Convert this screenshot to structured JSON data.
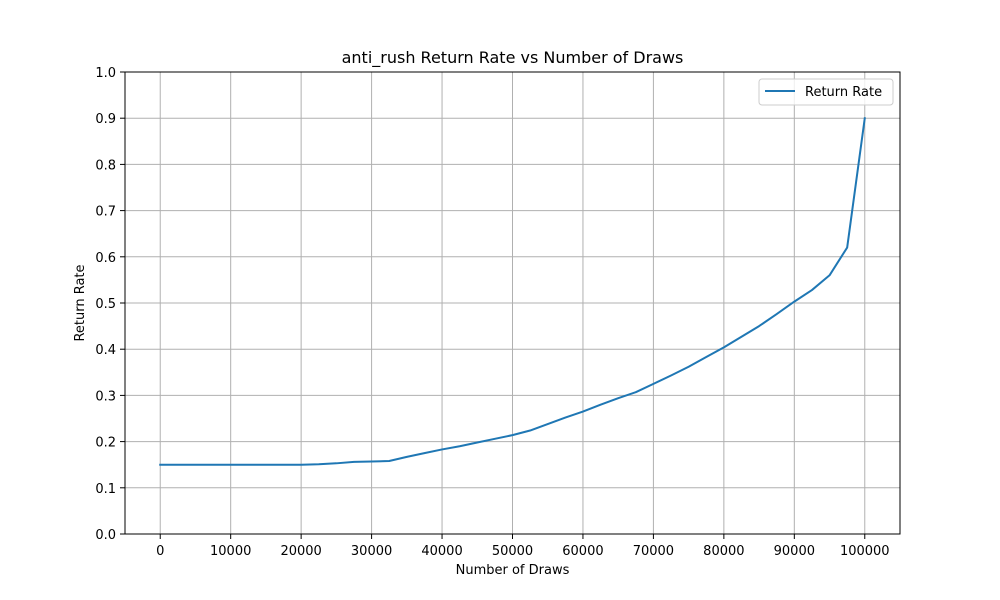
{
  "chart_data": {
    "type": "line",
    "title": "anti_rush Return Rate vs Number of Draws",
    "xlabel": "Number of Draws",
    "ylabel": "Return Rate",
    "xlim": [
      -5000,
      105000
    ],
    "ylim": [
      0.0,
      1.0
    ],
    "xticks": [
      0,
      10000,
      20000,
      30000,
      40000,
      50000,
      60000,
      70000,
      80000,
      90000,
      100000
    ],
    "xtick_labels": [
      "0",
      "10000",
      "20000",
      "30000",
      "40000",
      "50000",
      "60000",
      "70000",
      "80000",
      "90000",
      "100000"
    ],
    "yticks": [
      0.0,
      0.1,
      0.2,
      0.3,
      0.4,
      0.5,
      0.6,
      0.7,
      0.8,
      0.9,
      1.0
    ],
    "ytick_labels": [
      "0.0",
      "0.1",
      "0.2",
      "0.3",
      "0.4",
      "0.5",
      "0.6",
      "0.7",
      "0.8",
      "0.9",
      "1.0"
    ],
    "grid": true,
    "legend_position": "top-right",
    "series": [
      {
        "name": "Return Rate",
        "color": "#1f77b4",
        "x": [
          0,
          5000,
          10000,
          15000,
          20000,
          22500,
          25000,
          27500,
          30000,
          32500,
          35000,
          37500,
          40000,
          42500,
          45000,
          47500,
          50000,
          52500,
          55000,
          57500,
          60000,
          62500,
          65000,
          67500,
          70000,
          72500,
          75000,
          77500,
          80000,
          82500,
          85000,
          87500,
          90000,
          92500,
          95000,
          97500,
          100000
        ],
        "values": [
          0.15,
          0.15,
          0.15,
          0.15,
          0.15,
          0.151,
          0.153,
          0.156,
          0.157,
          0.158,
          0.167,
          0.175,
          0.183,
          0.19,
          0.198,
          0.206,
          0.214,
          0.224,
          0.238,
          0.252,
          0.265,
          0.28,
          0.294,
          0.307,
          0.325,
          0.343,
          0.362,
          0.383,
          0.404,
          0.427,
          0.45,
          0.476,
          0.503,
          0.528,
          0.56,
          0.62,
          0.9
        ]
      }
    ]
  }
}
